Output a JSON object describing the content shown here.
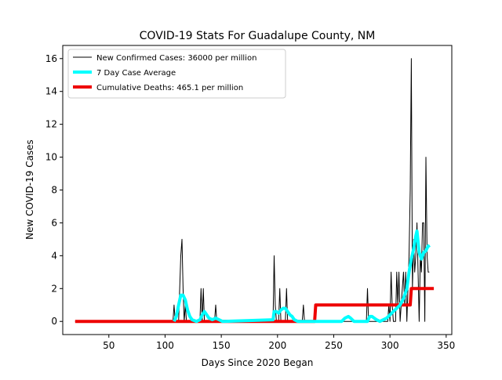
{
  "chart_data": {
    "type": "line",
    "title": "COVID-19 Stats For Guadalupe County, NM",
    "xlabel": "Days Since 2020 Began",
    "ylabel": "New COVID-19 Cases",
    "xlim": [
      9,
      355
    ],
    "ylim": [
      -0.8,
      16.8
    ],
    "xticks": [
      50,
      100,
      150,
      200,
      250,
      300,
      350
    ],
    "yticks": [
      0,
      2,
      4,
      6,
      8,
      10,
      12,
      14,
      16
    ],
    "grid": false,
    "legend_position": "top-left",
    "colors": {
      "cases": "#000000",
      "average": "#00ffff",
      "deaths": "#ee0000"
    },
    "series": [
      {
        "name": "New Confirmed Cases: 36000 per million",
        "style": "thin",
        "points": [
          [
            20,
            0
          ],
          [
            107,
            0
          ],
          [
            108,
            1
          ],
          [
            109,
            0
          ],
          [
            112,
            0
          ],
          [
            113,
            2
          ],
          [
            114,
            4
          ],
          [
            115,
            5
          ],
          [
            116,
            2
          ],
          [
            117,
            0
          ],
          [
            118,
            1
          ],
          [
            119,
            0
          ],
          [
            131,
            0
          ],
          [
            132,
            2
          ],
          [
            133,
            0
          ],
          [
            134,
            2
          ],
          [
            135,
            0
          ],
          [
            144,
            0
          ],
          [
            145,
            1
          ],
          [
            146,
            0
          ],
          [
            196,
            0
          ],
          [
            197,
            4
          ],
          [
            198,
            1
          ],
          [
            199,
            0
          ],
          [
            201,
            0
          ],
          [
            202,
            2
          ],
          [
            203,
            0
          ],
          [
            207,
            0
          ],
          [
            208,
            2
          ],
          [
            209,
            0
          ],
          [
            222,
            0
          ],
          [
            223,
            1
          ],
          [
            224,
            0
          ],
          [
            279,
            0
          ],
          [
            280,
            2
          ],
          [
            281,
            0
          ],
          [
            298,
            0
          ],
          [
            299,
            1
          ],
          [
            300,
            0
          ],
          [
            301,
            3
          ],
          [
            302,
            1
          ],
          [
            303,
            0
          ],
          [
            305,
            0
          ],
          [
            306,
            3
          ],
          [
            307,
            1
          ],
          [
            308,
            3
          ],
          [
            309,
            0
          ],
          [
            311,
            2
          ],
          [
            312,
            3
          ],
          [
            313,
            1
          ],
          [
            314,
            3
          ],
          [
            315,
            0
          ],
          [
            316,
            2
          ],
          [
            317,
            4
          ],
          [
            318,
            8
          ],
          [
            319,
            16
          ],
          [
            320,
            2
          ],
          [
            321,
            5
          ],
          [
            322,
            3
          ],
          [
            323,
            4
          ],
          [
            324,
            6
          ],
          [
            325,
            3
          ],
          [
            326,
            0
          ],
          [
            327,
            4
          ],
          [
            328,
            3
          ],
          [
            329,
            6
          ],
          [
            330,
            6
          ],
          [
            331,
            0
          ],
          [
            332,
            10
          ],
          [
            333,
            4
          ],
          [
            334,
            3
          ],
          [
            335,
            3
          ]
        ]
      },
      {
        "name": "7 Day Case Average",
        "style": "thick",
        "points": [
          [
            108,
            0
          ],
          [
            110,
            0.3
          ],
          [
            112,
            1
          ],
          [
            114,
            1.6
          ],
          [
            116,
            1.6
          ],
          [
            118,
            1.3
          ],
          [
            120,
            0.7
          ],
          [
            122,
            0.3
          ],
          [
            124,
            0.1
          ],
          [
            128,
            0
          ],
          [
            131,
            0.1
          ],
          [
            133,
            0.4
          ],
          [
            135,
            0.6
          ],
          [
            137,
            0.4
          ],
          [
            139,
            0.2
          ],
          [
            142,
            0.1
          ],
          [
            145,
            0.2
          ],
          [
            148,
            0.1
          ],
          [
            151,
            0
          ],
          [
            196,
            0.1
          ],
          [
            197,
            0.6
          ],
          [
            199,
            0.6
          ],
          [
            201,
            0.5
          ],
          [
            203,
            0.7
          ],
          [
            205,
            0.8
          ],
          [
            207,
            0.8
          ],
          [
            209,
            0.6
          ],
          [
            211,
            0.4
          ],
          [
            213,
            0.3
          ],
          [
            215,
            0.1
          ],
          [
            218,
            0
          ],
          [
            235,
            0
          ],
          [
            257,
            0
          ],
          [
            260,
            0.2
          ],
          [
            263,
            0.3
          ],
          [
            265,
            0.2
          ],
          [
            268,
            0
          ],
          [
            280,
            0
          ],
          [
            282,
            0.3
          ],
          [
            284,
            0.3
          ],
          [
            286,
            0.2
          ],
          [
            288,
            0.1
          ],
          [
            291,
            0
          ],
          [
            297,
            0.2
          ],
          [
            300,
            0.4
          ],
          [
            303,
            0.6
          ],
          [
            306,
            0.8
          ],
          [
            309,
            1
          ],
          [
            312,
            1.4
          ],
          [
            315,
            2
          ],
          [
            317,
            3
          ],
          [
            319,
            3.8
          ],
          [
            321,
            4.4
          ],
          [
            323,
            5.2
          ],
          [
            324,
            5.5
          ],
          [
            326,
            4.2
          ],
          [
            328,
            3.8
          ],
          [
            330,
            4.2
          ],
          [
            332,
            4.3
          ],
          [
            334,
            4.6
          ],
          [
            335,
            4.5
          ]
        ]
      },
      {
        "name": "Cumulative Deaths: 465.1 per million",
        "style": "thick",
        "points": [
          [
            20,
            0
          ],
          [
            233,
            0
          ],
          [
            234,
            1
          ],
          [
            318,
            1
          ],
          [
            319,
            2
          ],
          [
            339,
            2
          ]
        ]
      }
    ]
  }
}
